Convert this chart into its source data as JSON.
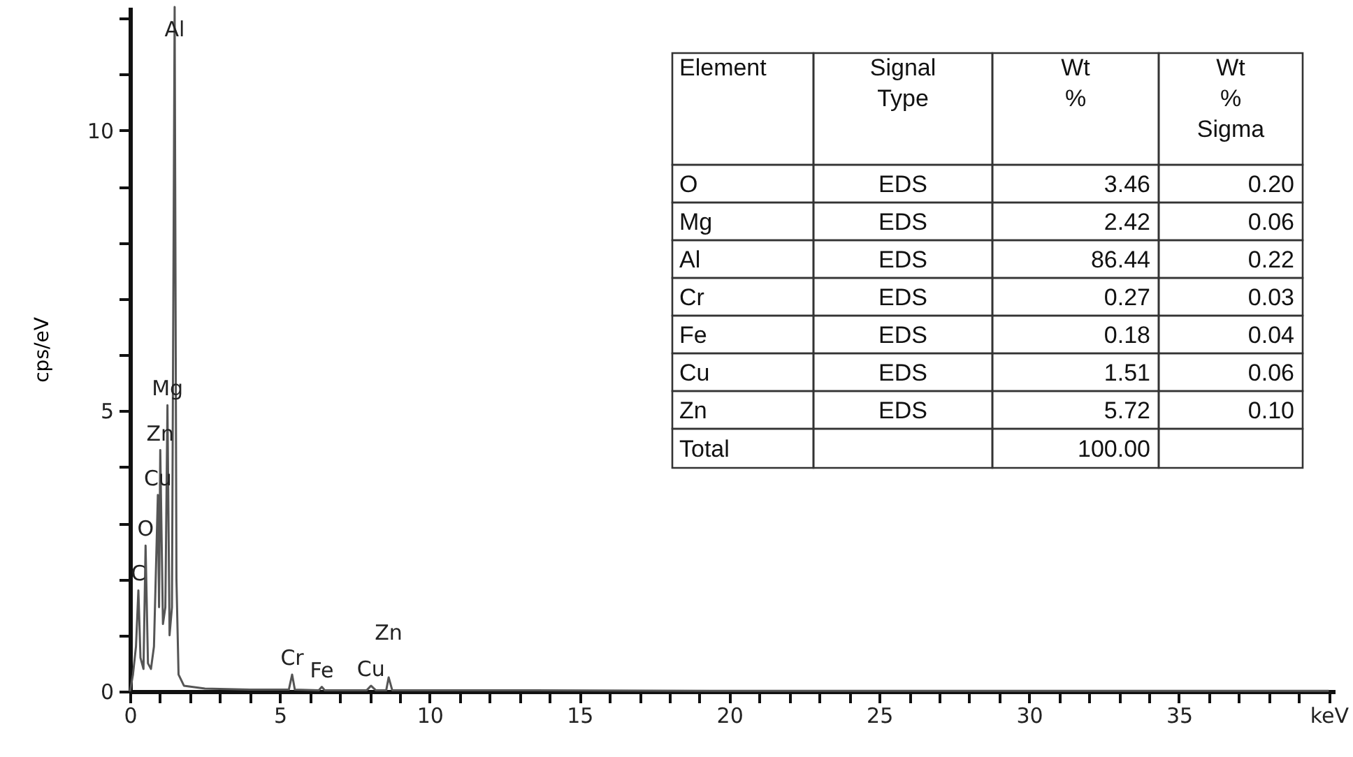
{
  "chart_data": {
    "type": "line",
    "ylabel": "cps/eV",
    "xlim": [
      0,
      40.2
    ],
    "ylim": [
      0,
      12.2
    ],
    "xticks": [
      0,
      {
        "value": 1,
        "label": null
      },
      {
        "value": 2,
        "label": null
      },
      {
        "value": 3,
        "label": null
      },
      {
        "value": 4,
        "label": null
      },
      5,
      {
        "value": 6,
        "label": null
      },
      {
        "value": 7,
        "label": null
      },
      {
        "value": 8,
        "label": null
      },
      {
        "value": 9,
        "label": null
      },
      10,
      {
        "value": 11,
        "label": null
      },
      {
        "value": 12,
        "label": null
      },
      {
        "value": 13,
        "label": null
      },
      {
        "value": 14,
        "label": null
      },
      15,
      {
        "value": 16,
        "label": null
      },
      {
        "value": 17,
        "label": null
      },
      {
        "value": 18,
        "label": null
      },
      {
        "value": 19,
        "label": null
      },
      20,
      {
        "value": 21,
        "label": null
      },
      {
        "value": 22,
        "label": null
      },
      {
        "value": 23,
        "label": null
      },
      {
        "value": 24,
        "label": null
      },
      25,
      {
        "value": 26,
        "label": null
      },
      {
        "value": 27,
        "label": null
      },
      {
        "value": 28,
        "label": null
      },
      {
        "value": 29,
        "label": null
      },
      30,
      {
        "value": 31,
        "label": null
      },
      {
        "value": 32,
        "label": null
      },
      {
        "value": 33,
        "label": null
      },
      {
        "value": 34,
        "label": null
      },
      35,
      {
        "value": 36,
        "label": null
      },
      {
        "value": 37,
        "label": null
      },
      {
        "value": 38,
        "label": null
      },
      {
        "value": 39,
        "label": null
      },
      {
        "value": 40,
        "label": "keV"
      }
    ],
    "yticks": [
      0,
      {
        "value": 1,
        "label": null
      },
      {
        "value": 2,
        "label": null
      },
      {
        "value": 3,
        "label": null
      },
      {
        "value": 4,
        "label": null
      },
      5,
      {
        "value": 6,
        "label": null
      },
      {
        "value": 7,
        "label": null
      },
      {
        "value": 8,
        "label": null
      },
      {
        "value": 9,
        "label": null
      },
      10,
      {
        "value": 11,
        "label": null
      },
      {
        "value": 12,
        "label": null
      }
    ],
    "grid": false,
    "series": [
      {
        "color": "#555555",
        "x": [
          0.0,
          0.1,
          0.2,
          0.28,
          0.35,
          0.45,
          0.52,
          0.6,
          0.7,
          0.8,
          0.93,
          0.97,
          1.01,
          1.1,
          1.18,
          1.25,
          1.32,
          1.4,
          1.49,
          1.55,
          1.62,
          1.8,
          2.5,
          4.0,
          5.3,
          5.41,
          5.5,
          6.3,
          6.4,
          6.5,
          7.9,
          8.04,
          8.2,
          8.55,
          8.63,
          8.75,
          12.0,
          20.0,
          30.0,
          40.0
        ],
        "values": [
          0.0,
          0.3,
          0.8,
          1.8,
          0.6,
          0.4,
          2.6,
          0.5,
          0.4,
          0.8,
          3.5,
          1.5,
          4.3,
          1.2,
          1.5,
          5.1,
          1.0,
          1.5,
          12.2,
          2.0,
          0.3,
          0.1,
          0.05,
          0.03,
          0.03,
          0.3,
          0.03,
          0.02,
          0.08,
          0.02,
          0.02,
          0.1,
          0.02,
          0.02,
          0.25,
          0.02,
          0.02,
          0.01,
          0.01,
          0.01
        ]
      }
    ],
    "annotations": [
      {
        "text": "Al",
        "x": 1.49,
        "y": 11.5
      },
      {
        "text": "Mg",
        "x": 1.25,
        "y": 5.1
      },
      {
        "text": "Zn",
        "x": 1.01,
        "y": 4.3
      },
      {
        "text": "Cu",
        "x": 0.93,
        "y": 3.5
      },
      {
        "text": "O",
        "x": 0.52,
        "y": 2.6
      },
      {
        "text": "C",
        "x": 0.28,
        "y": 1.8
      },
      {
        "text": "Cr",
        "x": 5.41,
        "y": 0.3
      },
      {
        "text": "Fe",
        "x": 6.4,
        "y": 0.08
      },
      {
        "text": "Cu",
        "x": 8.04,
        "y": 0.1
      },
      {
        "text": "Zn",
        "x": 8.63,
        "y": 0.25
      },
      "Element",
      "Signal Type",
      "Wt %",
      "Wt % Sigma",
      "O",
      "EDS",
      "3.46",
      "0.20",
      "Mg",
      "EDS",
      "2.42",
      "0.06",
      "Al",
      "EDS",
      "86.44",
      "0.22",
      "Cr",
      "EDS",
      "0.27",
      "0.03",
      "Fe",
      "EDS",
      "0.18",
      "0.04",
      "Cu",
      "EDS",
      "1.51",
      "0.06",
      "Zn",
      "EDS",
      "5.72",
      "0.10",
      "Total",
      null,
      "100.00",
      null
    ]
  }
}
